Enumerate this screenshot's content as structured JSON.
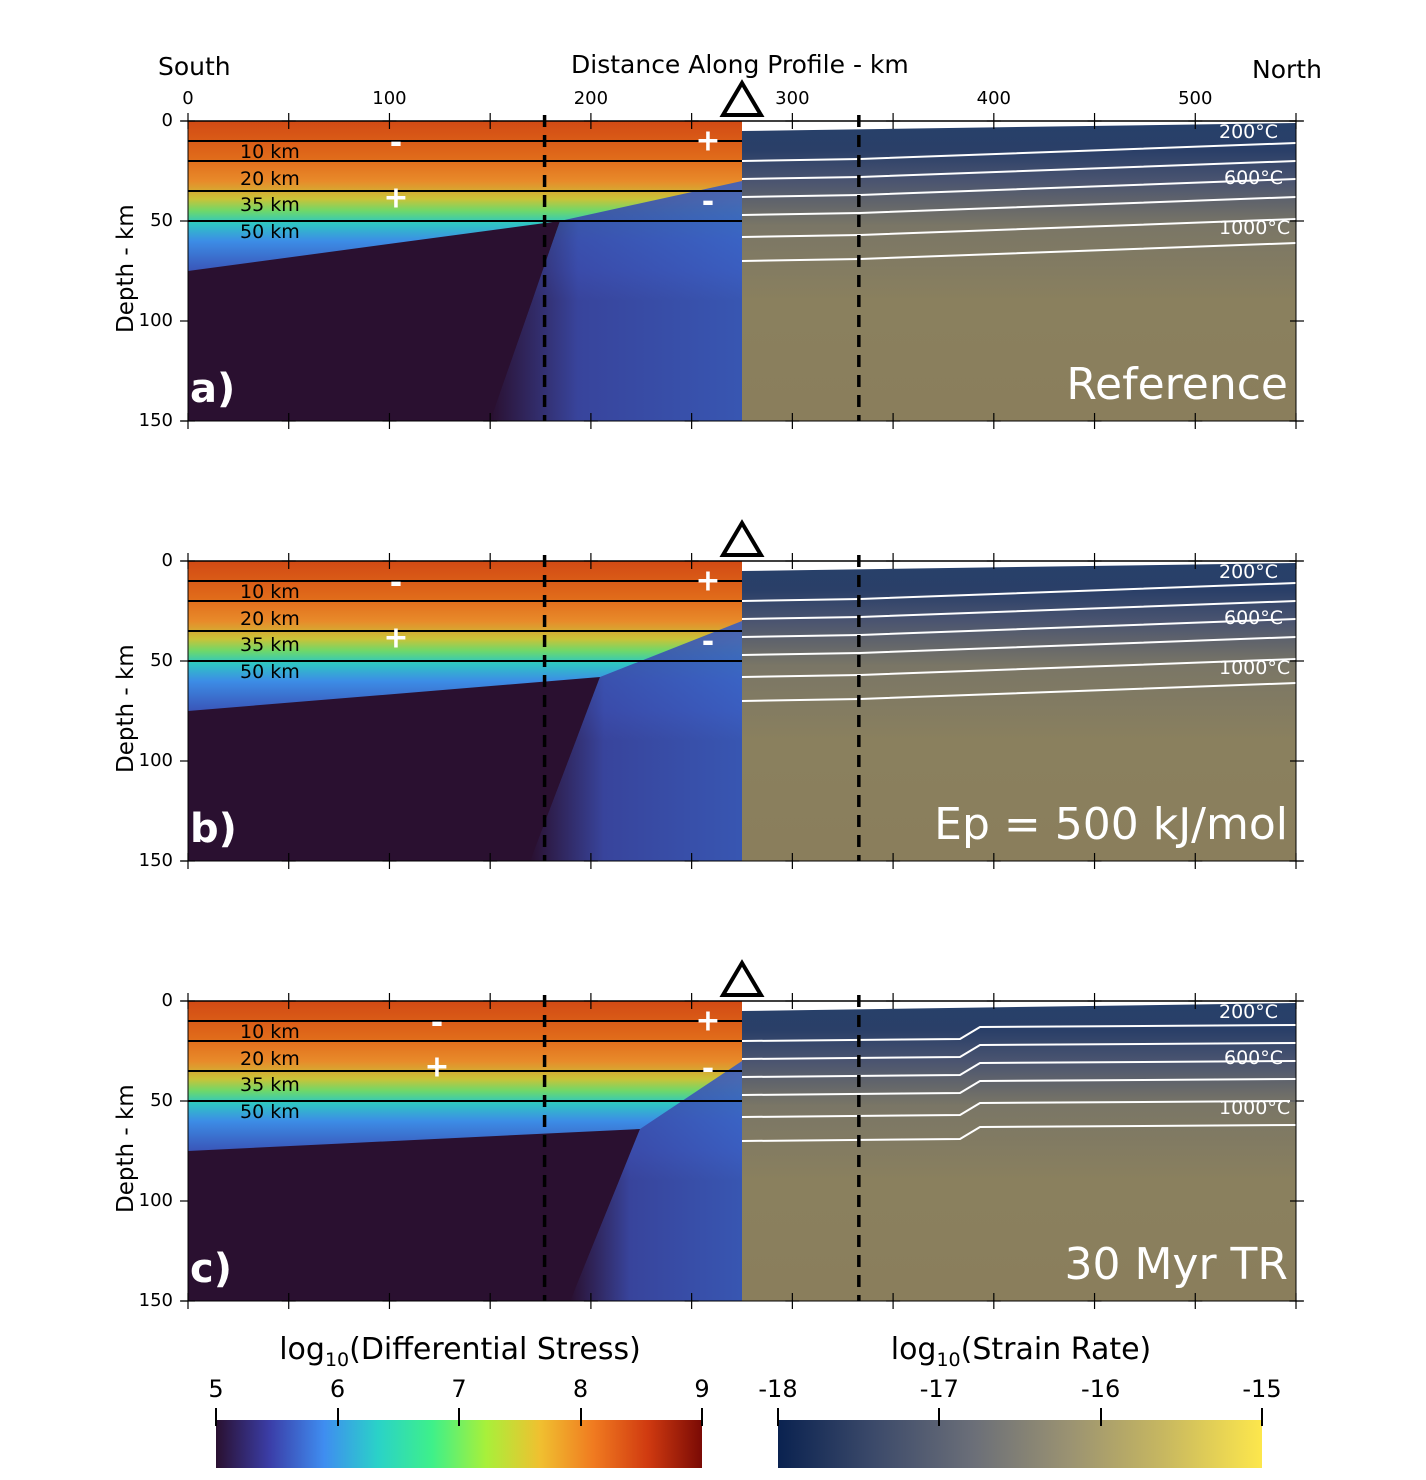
{
  "header": {
    "south": "South",
    "north": "North",
    "top_axis_title": "Distance Along Profile - km",
    "top_ticks": [
      "0",
      "100",
      "200",
      "300",
      "400",
      "500"
    ]
  },
  "y_axis": {
    "label": "Depth - km",
    "ticks": [
      "0",
      "50",
      "100",
      "150"
    ]
  },
  "depth_labels": [
    "10 km",
    "20 km",
    "35 km",
    "50 km"
  ],
  "isotherm_labels": [
    "200°C",
    "600°C",
    "1000°C"
  ],
  "panels": [
    {
      "tag": "a)",
      "case": "Reference",
      "signs": [
        "-",
        "+",
        "+",
        "-"
      ]
    },
    {
      "tag": "b)",
      "case": "Ep = 500 kJ/mol",
      "signs": [
        "-",
        "+",
        "+",
        "-"
      ]
    },
    {
      "tag": "c)",
      "case": "30 Myr TR",
      "signs": [
        "-",
        "+",
        "+",
        "-"
      ]
    }
  ],
  "colorbars": {
    "stress": {
      "title_pre": "log",
      "title_sub": "10",
      "title_post": "(Differential Stress)",
      "ticks": [
        "5",
        "6",
        "7",
        "8",
        "9"
      ],
      "colors": [
        "#2a1030",
        "#3b3ea8",
        "#3f8df0",
        "#2ad2c8",
        "#3ef08a",
        "#a8f03a",
        "#f0c030",
        "#f07a20",
        "#d03a10",
        "#7a0a05"
      ]
    },
    "strain": {
      "title_pre": "log",
      "title_sub": "10",
      "title_post": "(Strain Rate)",
      "ticks": [
        "-18",
        "-17",
        "-16",
        "-15"
      ],
      "colors": [
        "#0a2250",
        "#3c4a6a",
        "#6a6e78",
        "#9a9272",
        "#c8b860",
        "#fde74c"
      ]
    }
  },
  "chart_data": {
    "type": "heatmap",
    "x_range_km": [
      0,
      550
    ],
    "depth_range_km": [
      0,
      150
    ],
    "x_ticks_km": [
      0,
      100,
      200,
      300,
      400,
      500
    ],
    "depth_ticks_km": [
      0,
      50,
      100,
      150
    ],
    "reference_depths_km": [
      10,
      20,
      35,
      50
    ],
    "dashed_lines_km": [
      177,
      333
    ],
    "volcano_marker_km": 275,
    "stress_colorbar_range": [
      5,
      9
    ],
    "strain_colorbar_range": [
      -18,
      -15
    ]
  }
}
